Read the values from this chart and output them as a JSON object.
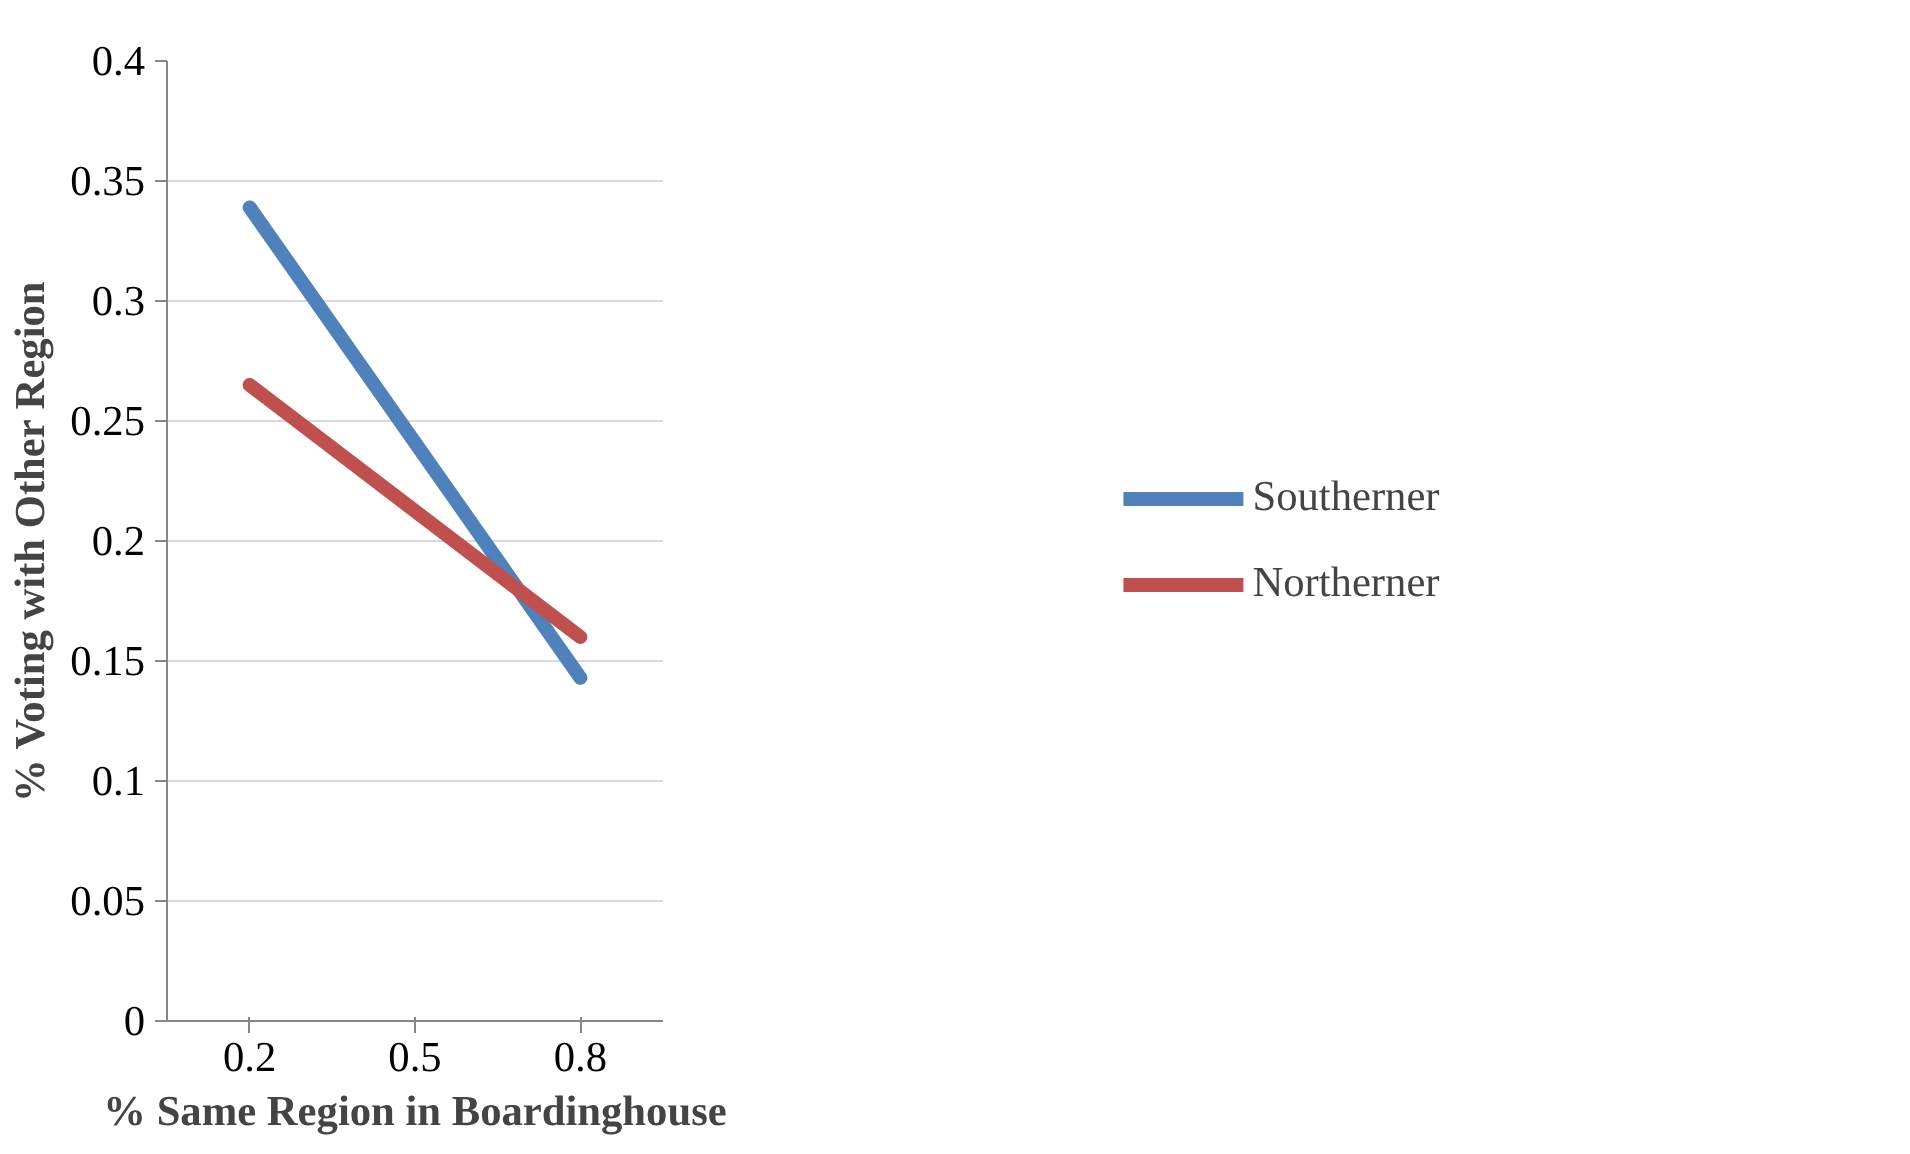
{
  "chart_data": {
    "type": "line",
    "xlabel": "% Same Region in Boardinghouse",
    "ylabel": "% Voting with Other Region",
    "categories": [
      "0.2",
      "0.5",
      "0.8"
    ],
    "series": [
      {
        "name": "Southerner",
        "color": "#4f81bd",
        "values": [
          0.339,
          null,
          0.143
        ]
      },
      {
        "name": "Northerner",
        "color": "#c0504d",
        "values": [
          0.265,
          null,
          0.16
        ]
      }
    ],
    "ylim": [
      0,
      0.4
    ],
    "yticks": [
      0,
      0.05,
      0.1,
      0.15,
      0.2,
      0.25,
      0.3,
      0.35,
      0.4
    ],
    "grid": "y",
    "legend": "right",
    "marker": "none",
    "line_style": "solid"
  }
}
